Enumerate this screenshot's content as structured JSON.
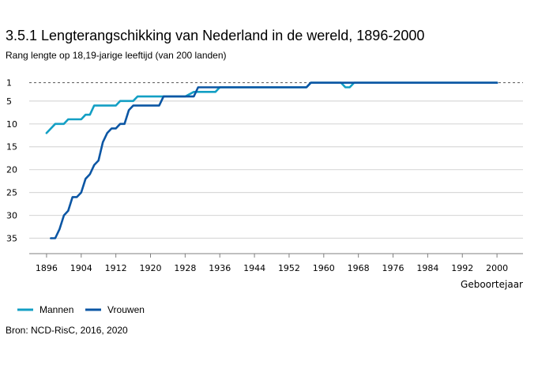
{
  "title": "3.5.1 Lengterangschikking van Nederland in de wereld, 1896-2000",
  "subtitle": "Rang lengte op 18,19-jarige leeftijd (van 200 landen)",
  "source": "Bron: NCD-RisC, 2016, 2020",
  "chart_data": {
    "type": "line",
    "xlabel": "Geboortejaar",
    "ylabel": "",
    "xlim": [
      1892,
      2006
    ],
    "ylim": [
      37.5,
      -0.5
    ],
    "y_inverted": true,
    "x_ticks": [
      1896,
      1904,
      1912,
      1920,
      1928,
      1936,
      1944,
      1952,
      1960,
      1968,
      1976,
      1984,
      1992,
      2000
    ],
    "y_ticks": [
      1,
      5,
      10,
      15,
      20,
      25,
      30,
      35
    ],
    "reference_line": 1,
    "grid": "horizontal",
    "legend_position": "bottom-left",
    "colors": {
      "Mannen": "#139fc4",
      "Vrouwen": "#0b56a4",
      "grid": "#d9d9d9",
      "axis": "#7f7f7f"
    },
    "series": [
      {
        "name": "Mannen",
        "x": [
          1896,
          1898,
          1899,
          1900,
          1901,
          1902,
          1903,
          1904,
          1905,
          1906,
          1907,
          1908,
          1910,
          1912,
          1913,
          1915,
          1916,
          1917,
          1920,
          1926,
          1927,
          1928,
          1930,
          1931,
          1932,
          1934,
          1935,
          1936,
          1937,
          1946,
          1956,
          1957,
          1958,
          1960,
          1963,
          1964,
          1965,
          1966,
          1967,
          1968,
          2000
        ],
        "y": [
          12,
          10,
          10,
          10,
          9,
          9,
          9,
          9,
          8,
          8,
          6,
          6,
          6,
          6,
          5,
          5,
          5,
          4,
          4,
          4,
          4,
          4,
          3,
          3,
          3,
          3,
          3,
          2,
          2,
          2,
          2,
          1,
          1,
          1,
          1,
          1,
          2,
          2,
          1,
          1,
          1
        ]
      },
      {
        "name": "Vrouwen",
        "x": [
          1897,
          1898,
          1899,
          1900,
          1901,
          1902,
          1903,
          1904,
          1905,
          1906,
          1907,
          1908,
          1909,
          1910,
          1911,
          1912,
          1913,
          1914,
          1915,
          1916,
          1917,
          1918,
          1920,
          1922,
          1923,
          1924,
          1928,
          1930,
          1931,
          1933,
          1936,
          1940,
          1950,
          1956,
          1957,
          1958,
          1962,
          1968,
          2000
        ],
        "y": [
          35,
          35,
          33,
          30,
          29,
          26,
          26,
          25,
          22,
          21,
          19,
          18,
          14,
          12,
          11,
          11,
          10,
          10,
          7,
          6,
          6,
          6,
          6,
          6,
          4,
          4,
          4,
          4,
          2,
          2,
          2,
          2,
          2,
          2,
          1,
          1,
          1,
          1,
          1
        ]
      }
    ]
  }
}
